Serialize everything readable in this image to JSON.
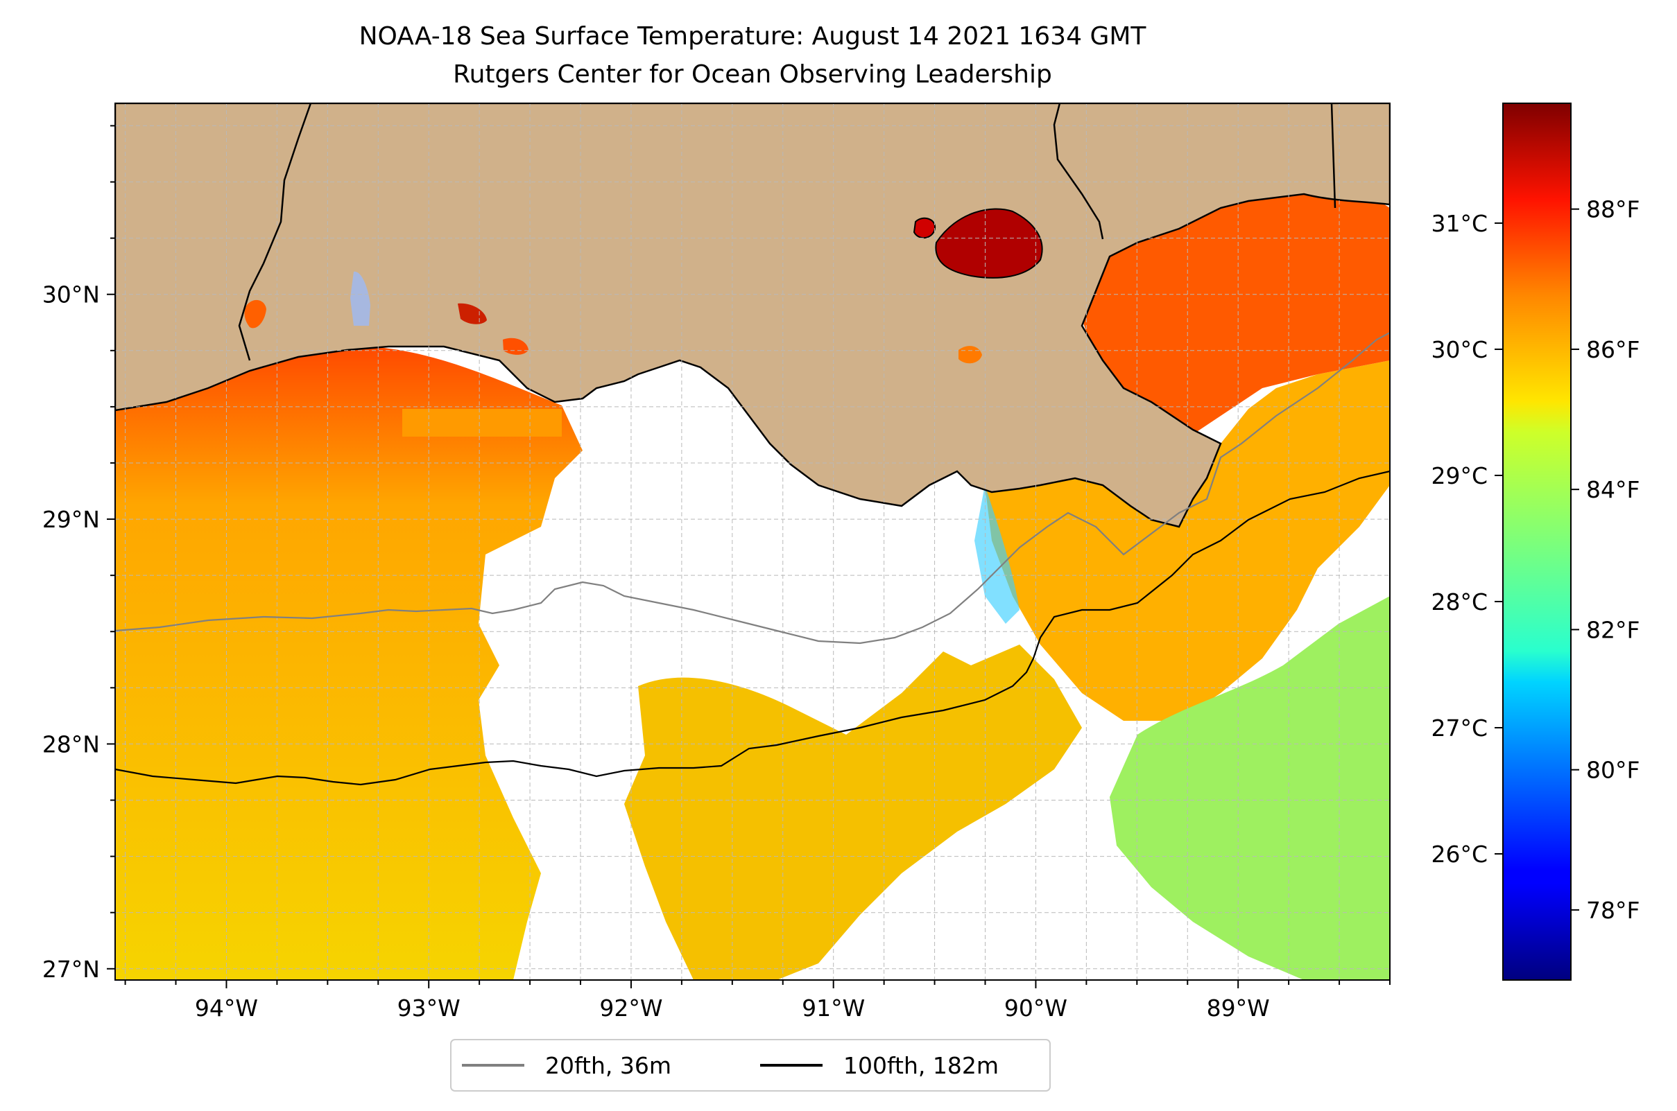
{
  "title": {
    "line1": "NOAA-18 Sea Surface Temperature: August 14 2021 1634 GMT",
    "line2": "Rutgers Center for Ocean Observing Leadership"
  },
  "map": {
    "lon_range": [
      -94.55,
      -88.25
    ],
    "lat_range": [
      26.95,
      30.85
    ],
    "lon_ticks": [
      {
        "value": -94,
        "label": "94°W"
      },
      {
        "value": -93,
        "label": "93°W"
      },
      {
        "value": -92,
        "label": "92°W"
      },
      {
        "value": -91,
        "label": "91°W"
      },
      {
        "value": -90,
        "label": "90°W"
      },
      {
        "value": -89,
        "label": "89°W"
      }
    ],
    "lat_ticks": [
      {
        "value": 27,
        "label": "27°N"
      },
      {
        "value": 28,
        "label": "28°N"
      },
      {
        "value": 29,
        "label": "29°N"
      },
      {
        "value": 30,
        "label": "30°N"
      }
    ],
    "grid": true,
    "colors": {
      "land": "#d0b18a",
      "no_data": "#ffffff",
      "contour_20fth": "#808080",
      "contour_100fth": "#000000"
    }
  },
  "legend": {
    "placement": "bottom-center",
    "items": [
      {
        "label": "20fth, 36m",
        "color": "#808080"
      },
      {
        "label": "100fth, 182m",
        "color": "#000000"
      }
    ]
  },
  "colorbar": {
    "colormap": "jet",
    "range_c": [
      25.0,
      31.95
    ],
    "celsius_ticks": [
      {
        "value": 26,
        "label": "26°C"
      },
      {
        "value": 27,
        "label": "27°C"
      },
      {
        "value": 28,
        "label": "28°C"
      },
      {
        "value": 29,
        "label": "29°C"
      },
      {
        "value": 30,
        "label": "30°C"
      },
      {
        "value": 31,
        "label": "31°C"
      }
    ],
    "fahrenheit_ticks": [
      {
        "value": 78,
        "label": "78°F"
      },
      {
        "value": 80,
        "label": "80°F"
      },
      {
        "value": 82,
        "label": "82°F"
      },
      {
        "value": 84,
        "label": "84°F"
      },
      {
        "value": 86,
        "label": "86°F"
      },
      {
        "value": 88,
        "label": "88°F"
      }
    ]
  }
}
